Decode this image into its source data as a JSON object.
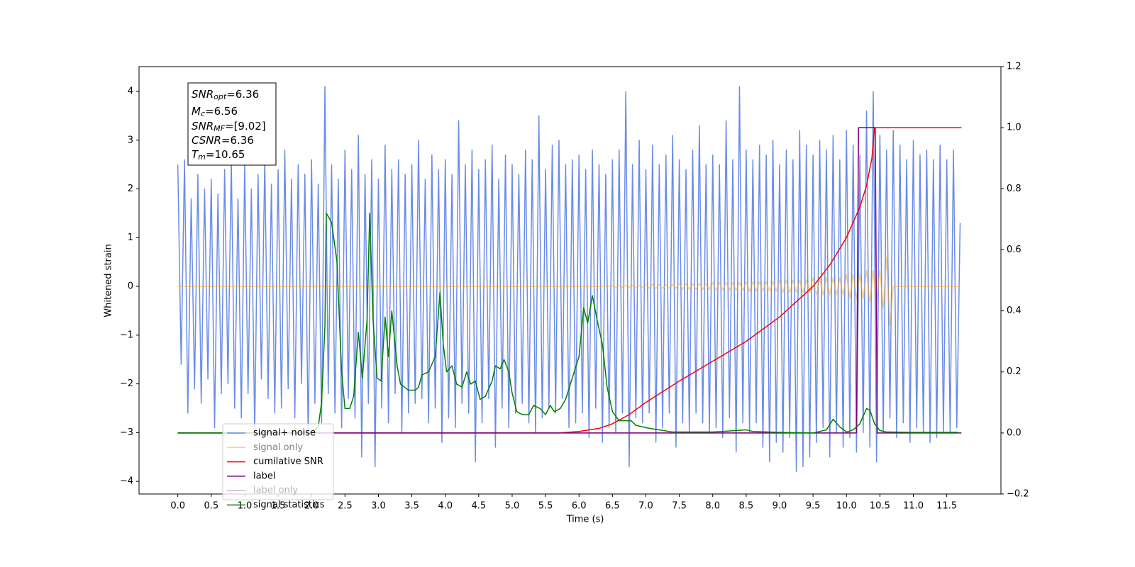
{
  "chart_data": {
    "type": "line",
    "xlabel": "Time (s)",
    "ylabel": "Whitened strain",
    "xlim": [
      -0.58,
      12.31
    ],
    "ylim": [
      -4.26,
      4.51
    ],
    "y2lim": [
      -0.2,
      1.2
    ],
    "xticks": [
      {
        "value": 0,
        "label": "0.0"
      },
      0.5,
      {
        "value": 1,
        "label": "1.0"
      },
      1.5,
      {
        "value": 2,
        "label": "2.0"
      },
      2.5,
      {
        "value": 3,
        "label": "3.0"
      },
      3.5,
      {
        "value": 4,
        "label": "4.0"
      },
      4.5,
      {
        "value": 5,
        "label": "5.0"
      },
      5.5,
      {
        "value": 6,
        "label": "6.0"
      },
      6.5,
      {
        "value": 7,
        "label": "7.0"
      },
      7.5,
      {
        "value": 8,
        "label": "8.0"
      },
      8.5,
      {
        "value": 9,
        "label": "9.0"
      },
      9.5,
      {
        "value": 10,
        "label": "10.0"
      },
      10.5,
      {
        "value": 11,
        "label": "11.0"
      },
      11.5
    ],
    "yticks": [
      {
        "value": -4,
        "label": "−4"
      },
      {
        "value": -3,
        "label": "−3"
      },
      {
        "value": -2,
        "label": "−2"
      },
      {
        "value": -1,
        "label": "−1"
      },
      0,
      1,
      2,
      3,
      4
    ],
    "y2ticks": [
      {
        "value": -0.2,
        "label": "−0.2"
      },
      {
        "value": 0,
        "label": "0.0"
      },
      0.2,
      0.4,
      0.6,
      0.8,
      {
        "value": 1,
        "label": "1.0"
      },
      1.2
    ],
    "legend": "lower left",
    "annotation": [
      {
        "symbol": "SNR",
        "subscript": "opt",
        "text": "=6.36"
      },
      {
        "symbol": "M",
        "subscript": "c",
        "text": "=6.56"
      },
      {
        "symbol": "SNR",
        "subscript": "MF",
        "text": "=[9.02]"
      },
      {
        "symbol": "CSNR",
        "text": "=6.36"
      },
      {
        "symbol": "T",
        "subscript": "m",
        "text": "=10.65"
      }
    ],
    "x": [
      0,
      0.05,
      0.1,
      0.15,
      0.2,
      0.25,
      0.3,
      0.35,
      0.4,
      0.45,
      0.5,
      0.55,
      0.6,
      0.65,
      0.7,
      0.75,
      0.8,
      0.85,
      0.9,
      0.95,
      1.0,
      1.05,
      1.1,
      1.15,
      1.2,
      1.25,
      1.3,
      1.35,
      1.4,
      1.45,
      1.5,
      1.55,
      1.6,
      1.65,
      1.7,
      1.75,
      1.8,
      1.85,
      1.9,
      1.95,
      2.0,
      2.05,
      2.1,
      2.15,
      2.2,
      2.25,
      2.3,
      2.35,
      2.4,
      2.45,
      2.5,
      2.55,
      2.6,
      2.65,
      2.7,
      2.75,
      2.8,
      2.85,
      2.9,
      2.95,
      3.0,
      3.05,
      3.1,
      3.15,
      3.2,
      3.25,
      3.3,
      3.35,
      3.4,
      3.45,
      3.5,
      3.55,
      3.6,
      3.65,
      3.7,
      3.75,
      3.8,
      3.85,
      3.9,
      3.95,
      4.0,
      4.05,
      4.1,
      4.15,
      4.2,
      4.25,
      4.3,
      4.35,
      4.4,
      4.45,
      4.5,
      4.55,
      4.6,
      4.65,
      4.7,
      4.75,
      4.8,
      4.85,
      4.9,
      4.95,
      5.0,
      5.05,
      5.1,
      5.15,
      5.2,
      5.25,
      5.3,
      5.35,
      5.4,
      5.45,
      5.5,
      5.55,
      5.6,
      5.65,
      5.7,
      5.75,
      5.8,
      5.85,
      5.9,
      5.95,
      6.0,
      6.05,
      6.1,
      6.15,
      6.2,
      6.25,
      6.3,
      6.35,
      6.4,
      6.45,
      6.5,
      6.55,
      6.6,
      6.65,
      6.7,
      6.75,
      6.8,
      6.85,
      6.9,
      6.95,
      7.0,
      7.05,
      7.1,
      7.15,
      7.2,
      7.25,
      7.3,
      7.35,
      7.4,
      7.45,
      7.5,
      7.55,
      7.6,
      7.65,
      7.7,
      7.75,
      7.8,
      7.85,
      7.9,
      7.95,
      8.0,
      8.05,
      8.1,
      8.15,
      8.2,
      8.25,
      8.3,
      8.35,
      8.4,
      8.45,
      8.5,
      8.55,
      8.6,
      8.65,
      8.7,
      8.75,
      8.8,
      8.85,
      8.9,
      8.95,
      9.0,
      9.05,
      9.1,
      9.15,
      9.2,
      9.25,
      9.3,
      9.35,
      9.4,
      9.45,
      9.5,
      9.55,
      9.6,
      9.65,
      9.7,
      9.75,
      9.8,
      9.85,
      9.9,
      9.95,
      10.0,
      10.05,
      10.1,
      10.15,
      10.2,
      10.25,
      10.3,
      10.35,
      10.4,
      10.45,
      10.5,
      10.55,
      10.6,
      10.65,
      10.7,
      10.75,
      10.8,
      10.85,
      10.9,
      10.95,
      11.0,
      11.05,
      11.1,
      11.15,
      11.2,
      11.25,
      11.3,
      11.35,
      11.4,
      11.45,
      11.5,
      11.55,
      11.6,
      11.65,
      11.7
    ],
    "series": [
      {
        "name": "signal+ noise",
        "color": "#6b8ce6",
        "values": [
          2.5,
          -1.6,
          2.6,
          -2.6,
          1.8,
          -2.1,
          2.3,
          -2.4,
          2.0,
          -1.9,
          2.2,
          -2.9,
          1.9,
          -2.2,
          2.4,
          -2.0,
          2.6,
          -2.5,
          1.8,
          -2.7,
          2.5,
          -2.2,
          2.0,
          -3.0,
          2.3,
          -1.9,
          2.6,
          -2.3,
          2.1,
          -2.6,
          2.4,
          -2.5,
          2.8,
          -2.1,
          2.2,
          -2.7,
          2.5,
          -2.0,
          2.3,
          -3.1,
          2.6,
          -2.4,
          2.1,
          -2.8,
          4.1,
          -2.2,
          2.5,
          -2.6,
          2.2,
          -2.9,
          2.8,
          -2.3,
          2.4,
          -2.7,
          3.1,
          -3.5,
          2.3,
          -2.4,
          2.6,
          -3.7,
          2.2,
          -2.5,
          2.9,
          -2.8,
          2.4,
          -2.2,
          2.6,
          -3.0,
          2.3,
          -2.6,
          2.5,
          -2.4,
          3.0,
          -2.3,
          2.2,
          -2.8,
          2.7,
          -2.5,
          2.4,
          -3.2,
          2.6,
          -2.7,
          2.3,
          -2.9,
          3.4,
          -2.4,
          2.5,
          -2.6,
          2.8,
          -3.6,
          2.4,
          -2.8,
          2.6,
          -2.3,
          2.9,
          -3.3,
          2.2,
          -2.5,
          2.7,
          -2.9,
          2.5,
          -2.6,
          2.3,
          -2.4,
          2.8,
          -2.8,
          2.6,
          -3.0,
          3.5,
          -2.7,
          2.4,
          -2.5,
          2.9,
          -2.6,
          3.0,
          -2.3,
          2.5,
          -2.9,
          2.6,
          -2.8,
          2.7,
          -2.6,
          2.4,
          -3.1,
          2.8,
          -2.5,
          2.5,
          -3.2,
          2.3,
          -2.9,
          2.6,
          -3.0,
          2.8,
          -2.6,
          4.0,
          -3.7,
          2.5,
          -2.7,
          3.0,
          -2.8,
          2.4,
          -2.6,
          2.9,
          -3.2,
          2.5,
          -2.9,
          2.7,
          -2.6,
          3.1,
          -3.3,
          2.6,
          -2.8,
          2.4,
          -3.0,
          2.8,
          -2.6,
          3.3,
          -2.8,
          2.5,
          -3.0,
          2.7,
          -2.9,
          2.5,
          -3.1,
          3.4,
          -2.7,
          2.6,
          -3.4,
          4.1,
          -2.8,
          2.8,
          -3.0,
          2.6,
          -2.8,
          2.9,
          -3.3,
          2.7,
          -3.6,
          3.0,
          -3.2,
          2.5,
          -3.4,
          2.8,
          -3.1,
          2.6,
          -3.8,
          3.2,
          -3.7,
          2.9,
          -3.5,
          2.7,
          -3.2,
          3.0,
          -2.9,
          2.8,
          -3.5,
          3.1,
          -3.0,
          2.6,
          -3.3,
          3.2,
          -3.1,
          2.9,
          -3.4,
          2.7,
          -3.0,
          3.6,
          -3.3,
          4.0,
          -3.6,
          3.1,
          -3.0,
          2.8,
          -2.7,
          3.2,
          -3.1,
          2.9,
          -2.8,
          2.6,
          -3.2,
          3.0,
          -2.9,
          2.7,
          -3.0,
          2.8,
          -3.2,
          2.6,
          -3.1,
          2.9,
          -3.0,
          2.6,
          -3.0,
          2.8,
          -2.9,
          1.3
        ]
      },
      {
        "name": "signal only",
        "color": "#ffa500",
        "values": [
          0,
          0,
          0,
          0,
          0,
          0,
          0,
          0,
          0,
          0,
          0,
          0,
          0,
          0,
          0,
          0,
          0,
          0,
          0,
          0,
          0,
          0,
          0,
          0,
          0,
          0,
          0,
          0,
          0,
          0,
          0,
          0,
          0,
          0,
          0,
          0,
          0,
          0,
          0,
          0,
          0,
          0,
          0,
          0,
          0,
          0,
          0,
          0,
          0,
          0,
          0,
          0,
          0,
          0,
          0,
          0,
          0,
          0,
          0,
          0,
          0,
          0,
          0,
          0,
          0,
          0,
          0,
          0,
          0,
          0,
          0,
          0,
          0,
          0,
          0,
          0,
          0,
          0,
          0,
          0,
          0,
          0,
          0,
          0,
          0,
          0,
          0,
          0,
          0,
          0,
          0,
          0,
          0,
          0,
          0,
          0,
          0,
          0,
          0,
          0,
          0,
          0,
          0,
          0,
          0,
          0,
          0,
          0,
          0,
          0,
          0,
          0,
          0,
          0,
          0,
          0,
          0,
          0,
          0,
          0,
          0,
          0,
          0,
          0,
          0,
          0,
          0,
          0,
          0,
          0,
          0.02,
          -0.02,
          0.02,
          -0.02,
          0.02,
          -0.02,
          0.02,
          -0.02,
          0.02,
          -0.02,
          0.04,
          -0.04,
          0.04,
          -0.04,
          0.04,
          -0.04,
          0.04,
          -0.04,
          0.04,
          -0.04,
          0.06,
          -0.06,
          0.06,
          -0.06,
          0.06,
          -0.06,
          0.06,
          -0.06,
          0.06,
          -0.06,
          0.08,
          -0.08,
          0.08,
          -0.08,
          0.08,
          -0.08,
          0.08,
          -0.08,
          0.08,
          -0.08,
          0.1,
          -0.1,
          0.1,
          -0.1,
          0.1,
          -0.1,
          0.1,
          -0.1,
          0.1,
          -0.1,
          0.13,
          -0.13,
          0.13,
          -0.13,
          0.13,
          -0.13,
          0.13,
          -0.13,
          0.13,
          -0.13,
          0.18,
          -0.18,
          0.18,
          -0.18,
          0.18,
          -0.18,
          0.18,
          -0.18,
          0.18,
          -0.18,
          0.25,
          -0.25,
          0.25,
          -0.25,
          0.25,
          -0.25,
          0.33,
          -0.33,
          0.33,
          -0.33,
          0.33,
          -0.45,
          0.6,
          -0.8,
          0,
          0,
          0,
          0,
          0,
          0,
          0,
          0,
          0,
          0,
          0,
          0,
          0,
          0,
          0,
          0,
          0,
          0,
          0,
          0,
          0
        ],
        "alpha": 0.5
      },
      {
        "name": "cumilative SNR",
        "color": "#ff0000",
        "axis": "y2",
        "x": [
          0,
          5.7,
          6.0,
          6.3,
          6.5,
          6.75,
          7.0,
          7.5,
          8.0,
          8.5,
          9.0,
          9.25,
          9.5,
          9.75,
          10.0,
          10.2,
          10.3,
          10.38,
          10.42,
          11.72
        ],
        "values": [
          0,
          0,
          0.005,
          0.015,
          0.03,
          0.06,
          0.1,
          0.17,
          0.235,
          0.3,
          0.38,
          0.43,
          0.48,
          0.55,
          0.64,
          0.74,
          0.81,
          0.9,
          1.0,
          1.0
        ]
      },
      {
        "name": "label",
        "color": "#800080",
        "axis": "y2",
        "x": [
          0,
          10.15,
          10.18,
          10.43,
          10.46,
          11.72
        ],
        "values": [
          0,
          0,
          1,
          1,
          0,
          0
        ]
      },
      {
        "name": "label only",
        "color": "#800080",
        "axis": "y2",
        "alpha": 0.3,
        "x": [
          0,
          10.15,
          10.18,
          10.43,
          10.46,
          11.72
        ],
        "values": [
          0,
          0,
          1,
          1,
          0,
          0
        ]
      },
      {
        "name": "signal statistics",
        "color": "#008000",
        "axis": "y2",
        "x": [
          0,
          1.5,
          2.0,
          2.1,
          2.15,
          2.2,
          2.22,
          2.3,
          2.38,
          2.45,
          2.5,
          2.57,
          2.63,
          2.7,
          2.76,
          2.83,
          2.87,
          2.92,
          2.98,
          3.04,
          3.1,
          3.15,
          3.2,
          3.28,
          3.33,
          3.45,
          3.55,
          3.6,
          3.65,
          3.75,
          3.85,
          3.92,
          3.97,
          4.02,
          4.1,
          4.17,
          4.25,
          4.32,
          4.38,
          4.45,
          4.52,
          4.6,
          4.7,
          4.75,
          4.82,
          4.88,
          4.95,
          5.0,
          5.07,
          5.15,
          5.25,
          5.32,
          5.42,
          5.5,
          5.57,
          5.63,
          5.72,
          5.8,
          5.9,
          6.0,
          6.07,
          6.13,
          6.2,
          6.28,
          6.35,
          6.42,
          6.5,
          6.6,
          6.7,
          6.78,
          6.85,
          6.95,
          7.05,
          7.2,
          7.4,
          8.0,
          8.5,
          8.6,
          9.0,
          9.5,
          9.7,
          9.8,
          9.9,
          10.0,
          10.1,
          10.2,
          10.3,
          10.35,
          10.42,
          10.5,
          10.6,
          11.0,
          11.67
        ],
        "values": [
          0,
          0,
          0,
          0.02,
          0.1,
          0.35,
          0.72,
          0.69,
          0.56,
          0.2,
          0.08,
          0.08,
          0.12,
          0.33,
          0.18,
          0.37,
          0.72,
          0.37,
          0.18,
          0.17,
          0.38,
          0.25,
          0.4,
          0.22,
          0.16,
          0.14,
          0.14,
          0.15,
          0.19,
          0.2,
          0.25,
          0.46,
          0.29,
          0.2,
          0.22,
          0.16,
          0.15,
          0.2,
          0.16,
          0.17,
          0.11,
          0.12,
          0.17,
          0.22,
          0.21,
          0.24,
          0.2,
          0.13,
          0.07,
          0.06,
          0.06,
          0.09,
          0.08,
          0.06,
          0.09,
          0.07,
          0.08,
          0.11,
          0.18,
          0.25,
          0.41,
          0.36,
          0.45,
          0.36,
          0.29,
          0.15,
          0.07,
          0.04,
          0.04,
          0.04,
          0.025,
          0.02,
          0.015,
          0.01,
          0.003,
          0.003,
          0.01,
          0.005,
          0.002,
          0,
          0.01,
          0.045,
          0.02,
          0.003,
          0.01,
          0.03,
          0.08,
          0.075,
          0.03,
          0.008,
          0.003,
          0.002,
          0.002
        ]
      }
    ]
  }
}
